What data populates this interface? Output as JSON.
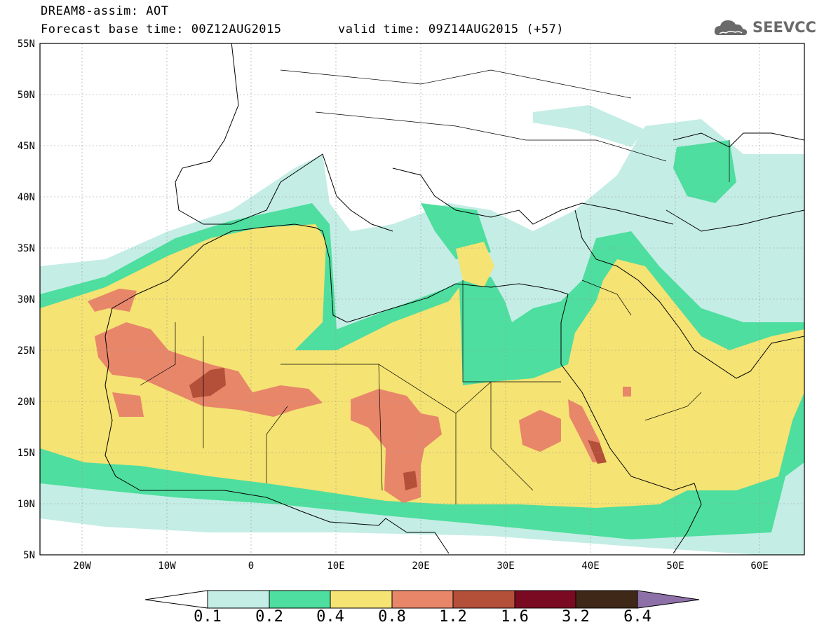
{
  "header": {
    "title": "DREAM8-assim: AOT",
    "base_time": "Forecast base time: 00Z12AUG2015",
    "valid_time": "valid time: 09Z14AUG2015 (+57)"
  },
  "logo": {
    "text": "SEEVCCC",
    "icon": "cloud-icon"
  },
  "map": {
    "lon_range": [
      -25,
      65
    ],
    "lat_range": [
      5,
      55
    ],
    "lat_labels": [
      "55N",
      "50N",
      "45N",
      "40N",
      "35N",
      "30N",
      "25N",
      "20N",
      "15N",
      "10N",
      "5N"
    ],
    "lon_labels": [
      "20W",
      "10W",
      "0",
      "10E",
      "20E",
      "30E",
      "40E",
      "50E",
      "60E"
    ]
  },
  "colorbar": {
    "labels": [
      "0.1",
      "0.2",
      "0.4",
      "0.8",
      "1.2",
      "1.6",
      "3.2",
      "6.4"
    ],
    "colors": [
      "#ffffff",
      "#c4ede5",
      "#4ede9f",
      "#f5e373",
      "#e8866a",
      "#b4503a",
      "#7a0a22",
      "#3f2818",
      "#8e70a8"
    ]
  },
  "fields": {
    "level_0.1": "#c4ede5",
    "level_0.2": "#4ede9f",
    "level_0.4": "#f5e373",
    "level_0.8": "#e8866a",
    "level_1.2": "#b4503a"
  }
}
